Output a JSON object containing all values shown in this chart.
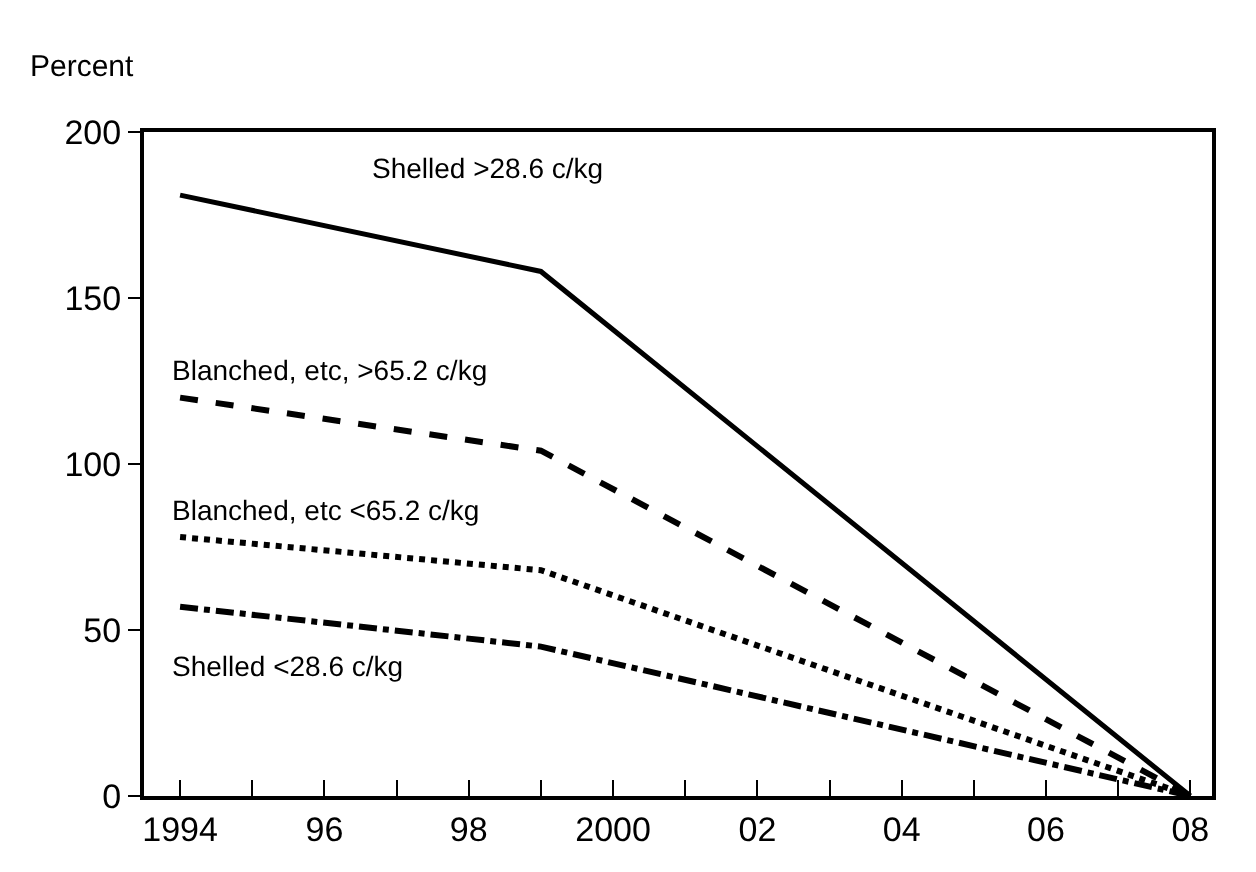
{
  "chart_data": {
    "type": "line",
    "ylabel": "Percent",
    "x": [
      1994,
      1999,
      2008
    ],
    "series": [
      {
        "name": "Shelled >28.6 c/kg",
        "color": "#000000",
        "values": [
          181,
          158,
          0
        ],
        "line_style": "solid"
      },
      {
        "name": "Blanched, etc, >65.2 c/kg",
        "color": "#000000",
        "values": [
          120,
          104,
          0
        ],
        "line_style": "dashed"
      },
      {
        "name": "Blanched, etc <65.2 c/kg",
        "color": "#000000",
        "values": [
          78,
          68,
          0
        ],
        "line_style": "dotted"
      },
      {
        "name": "Shelled <28.6 c/kg",
        "color": "#000000",
        "values": [
          57,
          45,
          0
        ],
        "line_style": "dashdot"
      }
    ],
    "xlim": [
      1993.5,
      2008.3
    ],
    "xticks": [
      {
        "value": 1994,
        "label": "1994"
      },
      {
        "value": 1995,
        "label": null
      },
      {
        "value": 1996,
        "label": "96"
      },
      {
        "value": 1997,
        "label": null
      },
      {
        "value": 1998,
        "label": "98"
      },
      {
        "value": 1999,
        "label": null
      },
      {
        "value": 2000,
        "label": "2000"
      },
      {
        "value": 2001,
        "label": null
      },
      {
        "value": 2002,
        "label": "02"
      },
      {
        "value": 2003,
        "label": null
      },
      {
        "value": 2004,
        "label": "04"
      },
      {
        "value": 2005,
        "label": null
      },
      {
        "value": 2006,
        "label": "06"
      },
      {
        "value": 2007,
        "label": null
      },
      {
        "value": 2008,
        "label": "08"
      }
    ],
    "ylim": [
      0,
      200
    ],
    "yticks": [
      0,
      50,
      100,
      150,
      200
    ],
    "legend": false,
    "marker": "none"
  }
}
